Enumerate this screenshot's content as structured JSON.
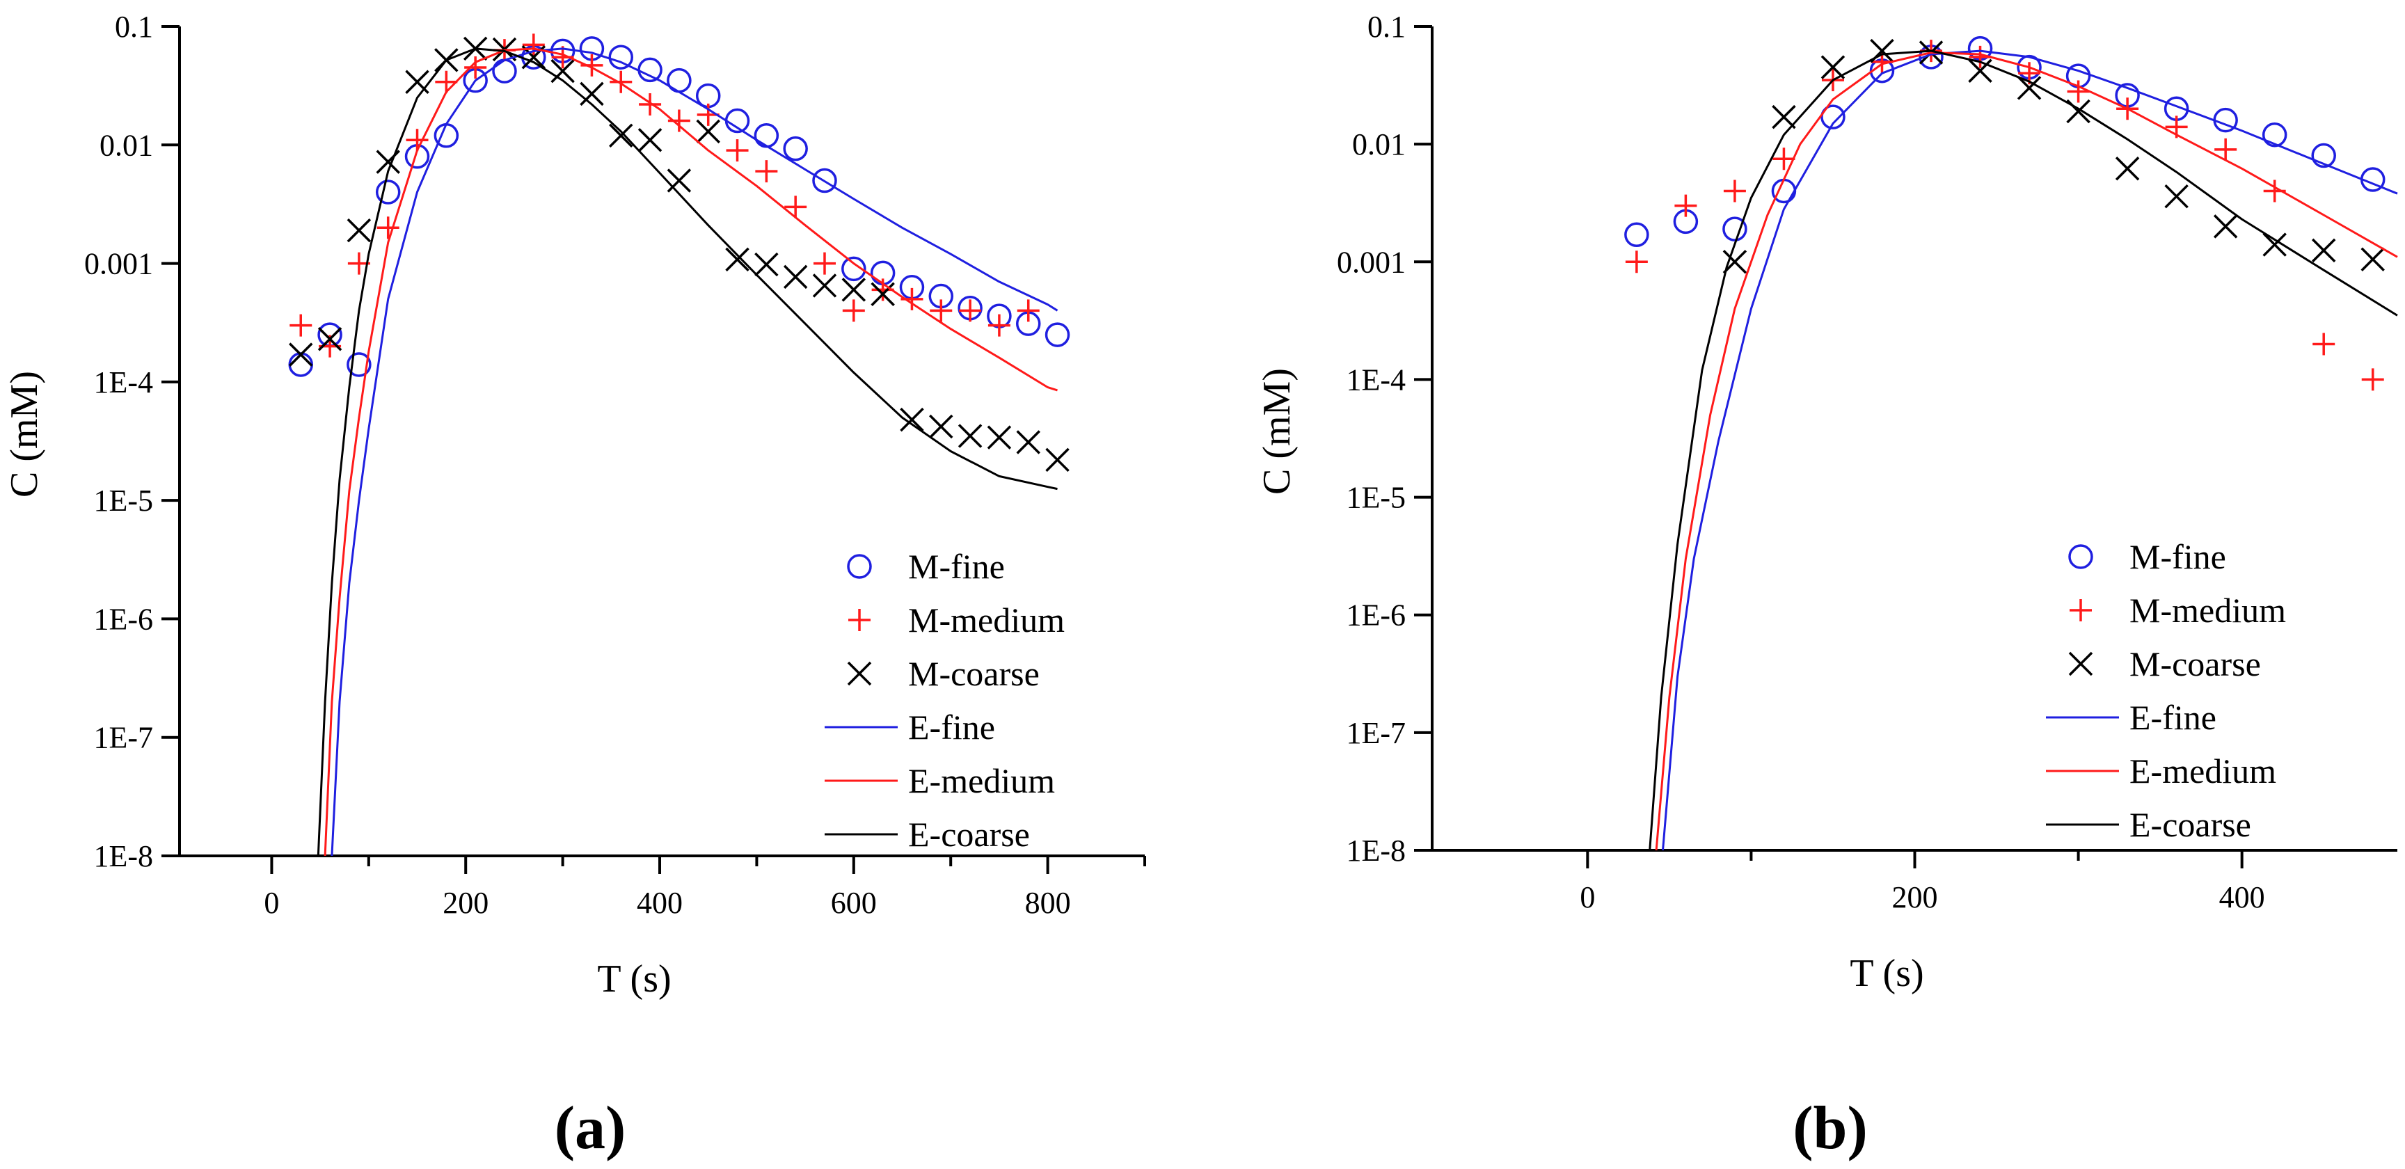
{
  "figure": {
    "panels": [
      "(a)",
      "(b)"
    ]
  },
  "chart_data": [
    {
      "type": "scatter",
      "panel_label": "(a)",
      "title": "",
      "xlabel": "T (s)",
      "ylabel": "C (mM)",
      "yscale": "log",
      "xlim": [
        -95,
        900
      ],
      "ylim": [
        1e-08,
        0.1
      ],
      "xticks": [
        0,
        200,
        400,
        600,
        800
      ],
      "xtick_labels": [
        "0",
        "200",
        "400",
        "600",
        "800"
      ],
      "yticks": [
        1e-08,
        1e-07,
        1e-06,
        1e-05,
        0.0001,
        0.001,
        0.01,
        0.1
      ],
      "ytick_labels": [
        "1E-8",
        "1E-7",
        "1E-6",
        "1E-5",
        "1E-4",
        "0.001",
        "0.01",
        "0.1"
      ],
      "legend_position": "bottom-right",
      "series": [
        {
          "name": "M-fine",
          "kind": "marker",
          "marker": "circle",
          "color": "#1f1fe0",
          "x": [
            30,
            60,
            90,
            120,
            150,
            180,
            210,
            240,
            270,
            300,
            330,
            360,
            390,
            420,
            450,
            480,
            510,
            540,
            570,
            600,
            630,
            660,
            690,
            720,
            750,
            780,
            810
          ],
          "y": [
            0.00014,
            0.00025,
            0.00014,
            0.004,
            0.008,
            0.012,
            0.035,
            0.042,
            0.055,
            0.062,
            0.065,
            0.055,
            0.043,
            0.035,
            0.026,
            0.016,
            0.012,
            0.0093,
            0.005,
            0.0009,
            0.00083,
            0.00063,
            0.00053,
            0.00042,
            0.00036,
            0.00031,
            0.00025
          ]
        },
        {
          "name": "M-medium",
          "kind": "marker",
          "marker": "plus",
          "color": "#ff1a1a",
          "x": [
            30,
            60,
            90,
            120,
            150,
            180,
            210,
            240,
            270,
            300,
            330,
            360,
            390,
            420,
            450,
            480,
            510,
            540,
            570,
            600,
            630,
            660,
            690,
            720,
            750,
            780
          ],
          "y": [
            0.0003,
            0.0002,
            0.001,
            0.002,
            0.011,
            0.034,
            0.045,
            0.063,
            0.07,
            0.055,
            0.047,
            0.034,
            0.022,
            0.016,
            0.018,
            0.009,
            0.006,
            0.003,
            0.001,
            0.0004,
            0.0006,
            0.0005,
            0.0004,
            0.0004,
            0.0003,
            0.0004
          ]
        },
        {
          "name": "M-coarse",
          "kind": "marker",
          "marker": "x",
          "color": "#000000",
          "x": [
            30,
            60,
            90,
            120,
            150,
            180,
            210,
            240,
            270,
            300,
            330,
            360,
            390,
            420,
            450,
            480,
            510,
            540,
            570,
            600,
            630,
            660,
            690,
            720,
            750,
            780,
            810
          ],
          "y": [
            0.00017,
            0.00023,
            0.0019,
            0.0072,
            0.034,
            0.052,
            0.065,
            0.064,
            0.055,
            0.042,
            0.027,
            0.012,
            0.011,
            0.005,
            0.013,
            0.00108,
            0.00098,
            0.00077,
            0.00065,
            0.0006,
            0.00055,
            4.8e-05,
            4.2e-05,
            3.5e-05,
            3.4e-05,
            3.1e-05,
            2.2e-05
          ]
        },
        {
          "name": "E-fine",
          "kind": "line",
          "color": "#1f1fe0",
          "x": [
            62,
            70,
            80,
            90,
            100,
            120,
            150,
            180,
            210,
            240,
            270,
            300,
            330,
            360,
            400,
            450,
            500,
            550,
            600,
            650,
            700,
            750,
            800,
            810
          ],
          "y": [
            1e-08,
            2e-07,
            2e-06,
            1e-05,
            4e-05,
            0.0005,
            0.004,
            0.015,
            0.035,
            0.052,
            0.062,
            0.065,
            0.06,
            0.05,
            0.035,
            0.02,
            0.011,
            0.0062,
            0.0035,
            0.002,
            0.0012,
            0.0007,
            0.00045,
            0.0004
          ]
        },
        {
          "name": "E-medium",
          "kind": "line",
          "color": "#ff1a1a",
          "x": [
            55,
            62,
            70,
            80,
            90,
            100,
            120,
            150,
            180,
            210,
            240,
            270,
            300,
            330,
            360,
            400,
            450,
            500,
            550,
            600,
            650,
            700,
            750,
            800,
            810
          ],
          "y": [
            1e-08,
            2e-07,
            1.5e-06,
            1.2e-05,
            5e-05,
            0.00018,
            0.0015,
            0.009,
            0.028,
            0.05,
            0.063,
            0.065,
            0.058,
            0.045,
            0.033,
            0.02,
            0.009,
            0.0045,
            0.0021,
            0.001,
            0.00052,
            0.00028,
            0.00016,
            9e-05,
            8.5e-05
          ]
        },
        {
          "name": "E-coarse",
          "kind": "line",
          "color": "#000000",
          "x": [
            48,
            55,
            62,
            70,
            80,
            90,
            100,
            120,
            150,
            180,
            210,
            240,
            270,
            300,
            330,
            360,
            400,
            450,
            500,
            550,
            600,
            650,
            700,
            750,
            800,
            810
          ],
          "y": [
            1e-08,
            2e-07,
            2e-06,
            1.5e-05,
            9e-05,
            0.0004,
            0.0012,
            0.006,
            0.025,
            0.052,
            0.065,
            0.062,
            0.05,
            0.035,
            0.022,
            0.013,
            0.0058,
            0.0021,
            0.0008,
            0.00031,
            0.00012,
            5e-05,
            2.6e-05,
            1.6e-05,
            1.3e-05,
            1.25e-05
          ]
        }
      ]
    },
    {
      "type": "scatter",
      "panel_label": "(b)",
      "title": "",
      "xlabel": "T (s)",
      "ylabel": "C (mM)",
      "yscale": "log",
      "xlim": [
        -95,
        495
      ],
      "ylim": [
        1e-08,
        0.1
      ],
      "xticks": [
        0,
        200,
        400
      ],
      "xtick_labels": [
        "0",
        "200",
        "400"
      ],
      "yticks": [
        1e-08,
        1e-07,
        1e-06,
        1e-05,
        0.0001,
        0.001,
        0.01,
        0.1
      ],
      "ytick_labels": [
        "1E-8",
        "1E-7",
        "1E-6",
        "1E-5",
        "1E-4",
        "0.001",
        "0.01",
        "0.1"
      ],
      "legend_position": "bottom-right",
      "series": [
        {
          "name": "M-fine",
          "kind": "marker",
          "marker": "circle",
          "color": "#1f1fe0",
          "x": [
            30,
            60,
            90,
            120,
            150,
            180,
            210,
            240,
            270,
            300,
            330,
            360,
            390,
            420,
            450,
            480
          ],
          "y": [
            0.0017,
            0.0022,
            0.0019,
            0.004,
            0.017,
            0.042,
            0.055,
            0.065,
            0.045,
            0.038,
            0.026,
            0.02,
            0.016,
            0.012,
            0.008,
            0.005
          ]
        },
        {
          "name": "M-medium",
          "kind": "marker",
          "marker": "plus",
          "color": "#ff1a1a",
          "x": [
            30,
            60,
            90,
            120,
            150,
            180,
            210,
            240,
            270,
            300,
            330,
            360,
            390,
            420,
            450,
            480
          ],
          "y": [
            0.001,
            0.003,
            0.004,
            0.0075,
            0.035,
            0.05,
            0.062,
            0.055,
            0.04,
            0.028,
            0.02,
            0.014,
            0.009,
            0.004,
            0.0002,
            0.0001
          ]
        },
        {
          "name": "M-coarse",
          "kind": "marker",
          "marker": "x",
          "color": "#000000",
          "x": [
            90,
            120,
            150,
            180,
            210,
            240,
            270,
            300,
            330,
            360,
            390,
            420,
            450,
            480
          ],
          "y": [
            0.001,
            0.017,
            0.045,
            0.062,
            0.06,
            0.042,
            0.03,
            0.019,
            0.0062,
            0.0036,
            0.002,
            0.0014,
            0.00125,
            0.00105
          ]
        },
        {
          "name": "E-fine",
          "kind": "line",
          "color": "#1f1fe0",
          "x": [
            46,
            55,
            65,
            80,
            100,
            120,
            150,
            180,
            210,
            240,
            270,
            300,
            330,
            360,
            400,
            450,
            495
          ],
          "y": [
            1e-08,
            3e-07,
            3e-06,
            3e-05,
            0.0004,
            0.0028,
            0.015,
            0.04,
            0.058,
            0.062,
            0.055,
            0.042,
            0.03,
            0.021,
            0.013,
            0.0068,
            0.0038
          ]
        },
        {
          "name": "E-medium",
          "kind": "line",
          "color": "#ff1a1a",
          "x": [
            42,
            50,
            60,
            75,
            90,
            110,
            130,
            150,
            180,
            210,
            240,
            270,
            300,
            330,
            360,
            400,
            450,
            495
          ],
          "y": [
            1e-08,
            2e-07,
            3e-06,
            5e-05,
            0.0004,
            0.0025,
            0.01,
            0.024,
            0.048,
            0.06,
            0.058,
            0.045,
            0.031,
            0.02,
            0.012,
            0.0062,
            0.0025,
            0.0011
          ]
        },
        {
          "name": "E-coarse",
          "kind": "line",
          "color": "#000000",
          "x": [
            38,
            45,
            55,
            70,
            85,
            100,
            120,
            150,
            180,
            210,
            240,
            270,
            300,
            330,
            360,
            400,
            450,
            495
          ],
          "y": [
            1e-08,
            2e-07,
            4e-06,
            0.00012,
            0.0009,
            0.0035,
            0.012,
            0.035,
            0.058,
            0.062,
            0.05,
            0.034,
            0.02,
            0.011,
            0.0058,
            0.0023,
            0.00085,
            0.00035
          ]
        }
      ]
    }
  ]
}
